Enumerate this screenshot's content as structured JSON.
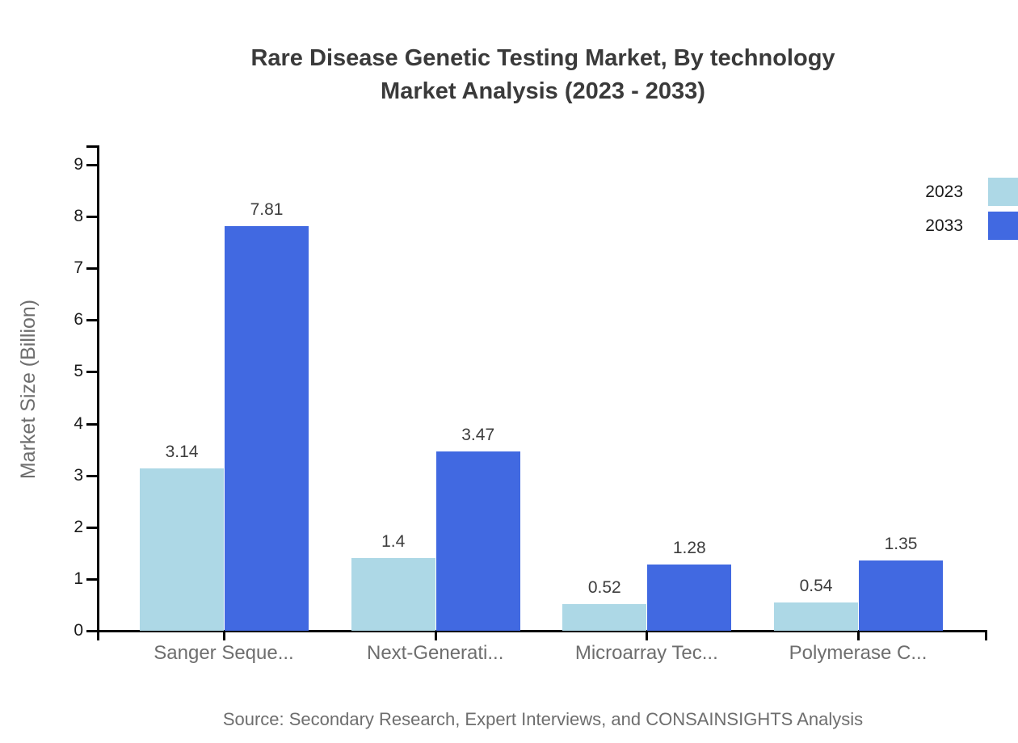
{
  "title": {
    "line1": "Rare Disease Genetic Testing Market, By technology",
    "line2": "Market Analysis (2023 - 2033)"
  },
  "chart_data": {
    "type": "bar",
    "title": "Rare Disease Genetic Testing Market, By technology Market Analysis (2023 - 2033)",
    "categories": [
      "Sanger Seque...",
      "Next-Generati...",
      "Microarray Tec...",
      "Polymerase C..."
    ],
    "series": [
      {
        "name": "2023",
        "color": "#ADD8E6",
        "values": [
          3.14,
          1.4,
          0.52,
          0.54
        ]
      },
      {
        "name": "2033",
        "color": "#4169E1",
        "values": [
          7.81,
          3.47,
          1.28,
          1.35
        ]
      }
    ],
    "xlabel": "",
    "ylabel": "Market Size (Billion)",
    "ylim": [
      0,
      9
    ],
    "yticks": [
      0,
      1,
      2,
      3,
      4,
      5,
      6,
      7,
      8,
      9
    ],
    "grid": false,
    "legend_position": "top-right",
    "bar_value_labels": true
  },
  "source": "Source: Secondary Research, Expert Interviews, and CONSAINSIGHTS Analysis",
  "colors": {
    "axis": "#000000",
    "title_text": "#3a3a3a",
    "muted_text": "#6e6e6e",
    "tick_text": "#1a1a1a"
  }
}
